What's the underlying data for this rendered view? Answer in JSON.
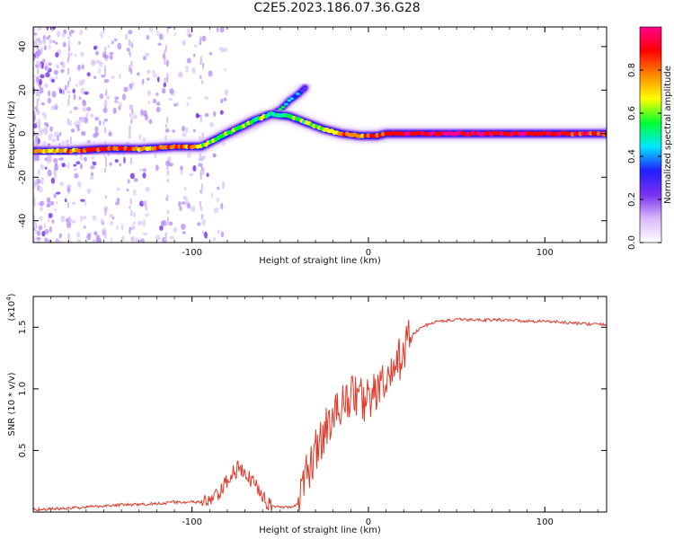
{
  "title": "C2E5.2023.186.07.36.G28",
  "chart_data": [
    {
      "type": "heatmap",
      "xlabel": "Height of straight line (km)",
      "ylabel": "Frequency (Hz)",
      "xlim": [
        -190,
        135
      ],
      "ylim": [
        -50,
        49
      ],
      "xticks": [
        -100,
        0,
        100
      ],
      "yticks": [
        -40,
        -20,
        0,
        20,
        40
      ],
      "colorbar": {
        "label": "Normalized spectral amplitude",
        "range": [
          0,
          1
        ],
        "ticks": [
          "0.0",
          "0.2",
          "0.4",
          "0.6",
          "0.8"
        ],
        "colors": [
          "#ffffff",
          "#d8b8f8",
          "#7a2ff0",
          "#2020ff",
          "#00e8ff",
          "#00ff30",
          "#ffff00",
          "#ff8800",
          "#ff0000",
          "#ff0090"
        ]
      },
      "ridge": {
        "name": "main signal",
        "x": [
          -190,
          -170,
          -150,
          -130,
          -110,
          -100,
          -95,
          -85,
          -75,
          -65,
          -55,
          -45,
          -35,
          -25,
          -15,
          -5,
          0,
          5,
          10,
          20,
          40,
          80,
          135
        ],
        "y": [
          -8,
          -8,
          -7,
          -7,
          -6,
          -6,
          -6,
          -2,
          2,
          6,
          9,
          8,
          5,
          2,
          0,
          -1,
          -1,
          -1,
          0,
          0,
          0,
          0,
          0
        ],
        "intensity": [
          0.7,
          0.8,
          0.85,
          0.8,
          0.85,
          0.8,
          0.7,
          0.6,
          0.65,
          0.6,
          0.55,
          0.55,
          0.6,
          0.7,
          0.75,
          0.8,
          0.8,
          0.85,
          0.9,
          0.95,
          0.95,
          0.95,
          0.9
        ]
      },
      "branch": {
        "name": "ascending branch",
        "x": [
          -80,
          -70,
          -60,
          -50,
          -45,
          -40,
          -36
        ],
        "y": [
          0,
          3,
          7,
          11,
          15,
          18,
          21
        ],
        "intensity": [
          0.5,
          0.5,
          0.55,
          0.5,
          0.45,
          0.4,
          0.35
        ]
      }
    },
    {
      "type": "line",
      "xlabel": "Height of straight line (km)",
      "ylabel": "SNR (10 * v/v)",
      "yscale_label": "(x10",
      "yscale_exp": "4",
      "xlim": [
        -190,
        135
      ],
      "ylim": [
        0.0,
        1.75
      ],
      "xticks": [
        -100,
        0,
        100
      ],
      "yticks": [
        0.5,
        1.0,
        1.5
      ],
      "ytick_labels": [
        "0.5",
        "1.0",
        "1.5"
      ],
      "series": [
        {
          "color": "#e03a2a",
          "x": [
            -190,
            -180,
            -170,
            -160,
            -150,
            -140,
            -130,
            -120,
            -110,
            -100,
            -92,
            -86,
            -82,
            -78,
            -74,
            -70,
            -66,
            -62,
            -58,
            -55,
            -50,
            -45,
            -40,
            -37,
            -34,
            -30,
            -26,
            -22,
            -18,
            -14,
            -10,
            -6,
            -2,
            2,
            6,
            10,
            14,
            18,
            22,
            26,
            30,
            35,
            40,
            50,
            60,
            70,
            80,
            90,
            100,
            110,
            120,
            135
          ],
          "y": [
            0.02,
            0.025,
            0.03,
            0.04,
            0.05,
            0.06,
            0.06,
            0.07,
            0.08,
            0.08,
            0.08,
            0.12,
            0.2,
            0.3,
            0.35,
            0.3,
            0.25,
            0.2,
            0.1,
            0.05,
            0.04,
            0.04,
            0.06,
            0.2,
            0.35,
            0.5,
            0.6,
            0.75,
            0.8,
            0.9,
            0.95,
            0.95,
            0.9,
            0.95,
            1.0,
            1.05,
            1.1,
            1.25,
            1.4,
            1.45,
            1.5,
            1.53,
            1.55,
            1.56,
            1.56,
            1.56,
            1.56,
            1.55,
            1.55,
            1.54,
            1.53,
            1.52
          ]
        }
      ]
    }
  ]
}
